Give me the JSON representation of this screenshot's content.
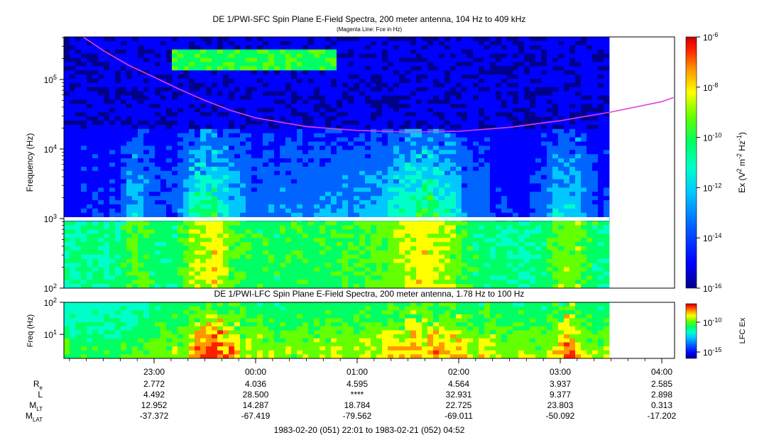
{
  "chart_data": [
    {
      "type": "heatmap",
      "title": "DE 1/PWI-SFC  Spin Plane E-Field Spectra, 200 meter antenna, 104 Hz to 409 kHz",
      "subtitle": "(Magenta Line: Fce in Hz)",
      "ylabel": "Frequency (Hz)",
      "yscale": "log",
      "ylim": [
        100,
        409000
      ],
      "yticks": [
        {
          "v": 100,
          "b": "10",
          "e": "2"
        },
        {
          "v": 1000,
          "b": "10",
          "e": "3"
        },
        {
          "v": 10000,
          "b": "10",
          "e": "4"
        },
        {
          "v": 100000,
          "b": "10",
          "e": "5"
        }
      ],
      "colorbar": {
        "label_parts": [
          "Ex (V",
          "2",
          " m",
          "-2",
          " Hz",
          "-1",
          ")"
        ],
        "scale": "log",
        "range": [
          1e-16,
          1e-06
        ],
        "ticks": [
          {
            "b": "10",
            "e": "-6"
          },
          {
            "b": "10",
            "e": "-8"
          },
          {
            "b": "10",
            "e": "-10"
          },
          {
            "b": "10",
            "e": "-12"
          },
          {
            "b": "10",
            "e": "-14"
          },
          {
            "b": "10",
            "e": "-16"
          }
        ]
      },
      "overlay_series": {
        "name": "Fce",
        "color": "#e040e0",
        "x": [
          "22:18",
          "22:30",
          "22:45",
          "23:00",
          "23:15",
          "23:30",
          "23:45",
          "00:00",
          "00:30",
          "01:00",
          "01:30",
          "02:00",
          "02:30",
          "03:00",
          "03:30",
          "04:00",
          "04:07"
        ],
        "y": [
          409000,
          260000,
          160000,
          108000,
          72000,
          50000,
          36000,
          28000,
          21000,
          18500,
          17500,
          18000,
          20500,
          25500,
          34000,
          48000,
          55000
        ]
      }
    },
    {
      "type": "heatmap",
      "title": "DE 1/PWI-LFC  Spin Plane E-Field Spectra, 200 meter antenna, 1.78 Hz to 100 Hz",
      "ylabel": "Freq (Hz)",
      "yscale": "log",
      "ylim": [
        1.78,
        100
      ],
      "yticks": [
        {
          "v": 10,
          "b": "10",
          "e": "1"
        },
        {
          "v": 100,
          "b": "10",
          "e": "2"
        }
      ],
      "colorbar": {
        "label": "LFC Ex",
        "ticks": [
          {
            "b": "10",
            "e": "-10"
          },
          {
            "b": "10",
            "e": "-15"
          }
        ]
      }
    }
  ],
  "colormap": [
    "#00008b",
    "#0000ff",
    "#0064ff",
    "#00c8ff",
    "#00ffc8",
    "#00ff64",
    "#64ff00",
    "#ffff00",
    "#ff9600",
    "#ff1e00",
    "#c80000"
  ],
  "time_axis": {
    "labels": [
      "23:00",
      "00:00",
      "01:00",
      "02:00",
      "03:00",
      "04:00"
    ],
    "range_text": "1983-02-20 (051) 22:01 to 1983-02-21 (052) 04:52"
  },
  "ephemeris": {
    "rows": [
      {
        "label": "R",
        "sub": "e",
        "values": [
          "2.772",
          "4.036",
          "4.595",
          "4.564",
          "3.937",
          "2.585"
        ]
      },
      {
        "label": "L",
        "sub": "",
        "values": [
          "4.492",
          "28.500",
          "****",
          "32.931",
          "9.377",
          "2.898"
        ]
      },
      {
        "label": "M",
        "sub": "LT",
        "values": [
          "12.952",
          "14.287",
          "18.784",
          "22.725",
          "23.803",
          "0.313"
        ]
      },
      {
        "label": "M",
        "sub": "LAT",
        "values": [
          "-37.372",
          "-67.419",
          "-79.562",
          "-69.011",
          "-50.092",
          "-17.202"
        ]
      }
    ]
  }
}
